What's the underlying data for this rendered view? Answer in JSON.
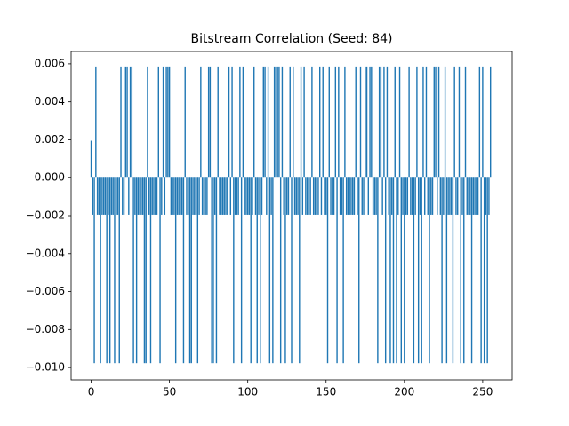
{
  "chart_data": {
    "type": "bar",
    "title": "Bitstream Correlation (Seed: 84)",
    "color": "#1f77b4",
    "x": [
      0,
      1,
      2,
      3,
      4,
      5,
      6,
      7,
      8,
      9,
      10,
      11,
      12,
      13,
      14,
      15,
      16,
      17,
      18,
      19,
      20,
      21,
      22,
      23,
      24,
      25,
      26,
      27,
      28,
      29,
      30,
      31,
      32,
      33,
      34,
      35,
      36,
      37,
      38,
      39,
      40,
      41,
      42,
      43,
      44,
      45,
      46,
      47,
      48,
      49,
      50,
      51,
      52,
      53,
      54,
      55,
      56,
      57,
      58,
      59,
      60,
      61,
      62,
      63,
      64,
      65,
      66,
      67,
      68,
      69,
      70,
      71,
      72,
      73,
      74,
      75,
      76,
      77,
      78,
      79,
      80,
      81,
      82,
      83,
      84,
      85,
      86,
      87,
      88,
      89,
      90,
      91,
      92,
      93,
      94,
      95,
      96,
      97,
      98,
      99,
      100,
      101,
      102,
      103,
      104,
      105,
      106,
      107,
      108,
      109,
      110,
      111,
      112,
      113,
      114,
      115,
      116,
      117,
      118,
      119,
      120,
      121,
      122,
      123,
      124,
      125,
      126,
      127,
      128,
      129,
      130,
      131,
      132,
      133,
      134,
      135,
      136,
      137,
      138,
      139,
      140,
      141,
      142,
      143,
      144,
      145,
      146,
      147,
      148,
      149,
      150,
      151,
      152,
      153,
      154,
      155,
      156,
      157,
      158,
      159,
      160,
      161,
      162,
      163,
      164,
      165,
      166,
      167,
      168,
      169,
      170,
      171,
      172,
      173,
      174,
      175,
      176,
      177,
      178,
      179,
      180,
      181,
      182,
      183,
      184,
      185,
      186,
      187,
      188,
      189,
      190,
      191,
      192,
      193,
      194,
      195,
      196,
      197,
      198,
      199,
      200,
      201,
      202,
      203,
      204,
      205,
      206,
      207,
      208,
      209,
      210,
      211,
      212,
      213,
      214,
      215,
      216,
      217,
      218,
      219,
      220,
      221,
      222,
      223,
      224,
      225,
      226,
      227,
      228,
      229,
      230,
      231,
      232,
      233,
      234,
      235,
      236,
      237,
      238,
      239,
      240,
      241,
      242,
      243,
      244,
      245,
      246,
      247,
      248,
      249,
      250,
      251,
      252,
      253,
      254,
      255
    ],
    "values": [
      0.00195,
      -0.00195,
      -0.00977,
      0.00586,
      -0.00195,
      -0.00195,
      -0.00977,
      -0.00195,
      -0.00195,
      -0.00195,
      -0.00977,
      -0.00195,
      -0.00977,
      -0.00195,
      -0.00195,
      -0.00977,
      -0.00195,
      -0.00195,
      -0.00977,
      0.00586,
      -0.00195,
      -0.00195,
      0.00586,
      0.00586,
      -0.00195,
      0.00586,
      0.00586,
      -0.00977,
      -0.00195,
      -0.00977,
      -0.00195,
      -0.00195,
      -0.00195,
      -0.00195,
      -0.00977,
      -0.00977,
      0.00586,
      -0.00195,
      -0.00977,
      -0.00195,
      -0.00195,
      -0.00195,
      -0.00195,
      0.00586,
      -0.00977,
      -0.00195,
      0.00586,
      -0.00195,
      0.00586,
      0.00586,
      0.00586,
      -0.00195,
      -0.00195,
      -0.00195,
      -0.00977,
      -0.00195,
      -0.00195,
      -0.00195,
      -0.00195,
      -0.00977,
      0.00586,
      -0.00195,
      -0.00195,
      -0.00977,
      -0.00977,
      -0.00195,
      -0.00195,
      -0.00195,
      -0.00977,
      -0.00195,
      0.00586,
      -0.00195,
      -0.00195,
      -0.00195,
      -0.00195,
      0.00586,
      0.00586,
      -0.00977,
      -0.00977,
      -0.00195,
      -0.00977,
      0.00586,
      -0.00195,
      -0.00195,
      -0.00195,
      -0.00195,
      -0.00195,
      -0.00195,
      0.00586,
      -0.00195,
      0.00586,
      -0.00977,
      -0.00195,
      -0.00195,
      -0.00195,
      0.00586,
      -0.00977,
      0.00586,
      -0.00195,
      -0.00195,
      -0.00195,
      -0.00195,
      -0.00977,
      -0.00195,
      0.00586,
      -0.00195,
      -0.00977,
      -0.00195,
      -0.00977,
      -0.00195,
      0.00586,
      0.00586,
      -0.00195,
      0.00586,
      -0.00977,
      -0.00195,
      -0.00977,
      0.00586,
      0.00586,
      0.00586,
      0.00586,
      -0.00977,
      0.00586,
      -0.00195,
      -0.00977,
      -0.00195,
      -0.00195,
      0.00586,
      -0.00977,
      0.00586,
      -0.00195,
      -0.00195,
      -0.00195,
      -0.00977,
      0.00586,
      -0.00195,
      0.00586,
      -0.00195,
      -0.00195,
      -0.00195,
      -0.00195,
      0.00586,
      -0.00195,
      -0.00195,
      -0.00195,
      -0.00195,
      0.00586,
      -0.00195,
      0.00586,
      -0.00195,
      -0.00195,
      -0.00977,
      0.00586,
      -0.00195,
      -0.00195,
      -0.00195,
      0.00586,
      -0.00977,
      0.00586,
      -0.00195,
      -0.00195,
      -0.00977,
      0.00586,
      -0.00195,
      -0.00195,
      -0.00195,
      -0.00195,
      -0.00195,
      -0.00195,
      0.00586,
      -0.00195,
      -0.00977,
      0.00586,
      -0.00195,
      -0.00195,
      0.00586,
      0.00586,
      -0.00195,
      0.00586,
      0.00586,
      -0.00195,
      -0.00195,
      -0.00195,
      -0.00977,
      0.00586,
      0.00586,
      -0.00195,
      0.00586,
      -0.00977,
      0.00586,
      -0.00195,
      -0.00977,
      -0.00195,
      -0.00977,
      0.00586,
      -0.00977,
      -0.00195,
      0.00586,
      -0.00977,
      -0.00195,
      -0.00977,
      -0.00195,
      -0.00195,
      0.00586,
      -0.00195,
      -0.00195,
      -0.00977,
      -0.00195,
      0.00586,
      -0.00977,
      -0.00195,
      -0.00977,
      0.00586,
      -0.00195,
      0.00586,
      -0.00195,
      -0.00977,
      -0.00195,
      -0.00195,
      0.00586,
      0.00586,
      -0.00195,
      0.00586,
      -0.00195,
      -0.00977,
      -0.00195,
      0.00586,
      -0.00977,
      -0.00195,
      -0.00195,
      -0.00195,
      -0.00977,
      0.00586,
      -0.00195,
      -0.00195,
      0.00586,
      -0.00977,
      -0.00195,
      -0.00977,
      0.00586,
      -0.00195,
      -0.00195,
      -0.00195,
      -0.00977,
      -0.00195,
      -0.00195,
      -0.00195,
      -0.00195,
      0.00586,
      -0.00977,
      0.00586,
      -0.00977,
      -0.00195,
      -0.00977,
      -0.00195,
      0.00586
    ],
    "xlim": [
      -12.8,
      268.8
    ],
    "xticks": [
      0,
      50,
      100,
      150,
      200,
      250
    ],
    "ylim": [
      -0.01065,
      0.00665
    ],
    "yticks": [
      {
        "value": -0.01,
        "label": "−0.010"
      },
      {
        "value": -0.008,
        "label": "−0.008"
      },
      {
        "value": -0.006,
        "label": "−0.006"
      },
      {
        "value": -0.004,
        "label": "−0.004"
      },
      {
        "value": -0.002,
        "label": "−0.002"
      },
      {
        "value": 0,
        "label": "0.000"
      },
      0.002,
      0.004,
      0.006
    ],
    "grid": false
  }
}
